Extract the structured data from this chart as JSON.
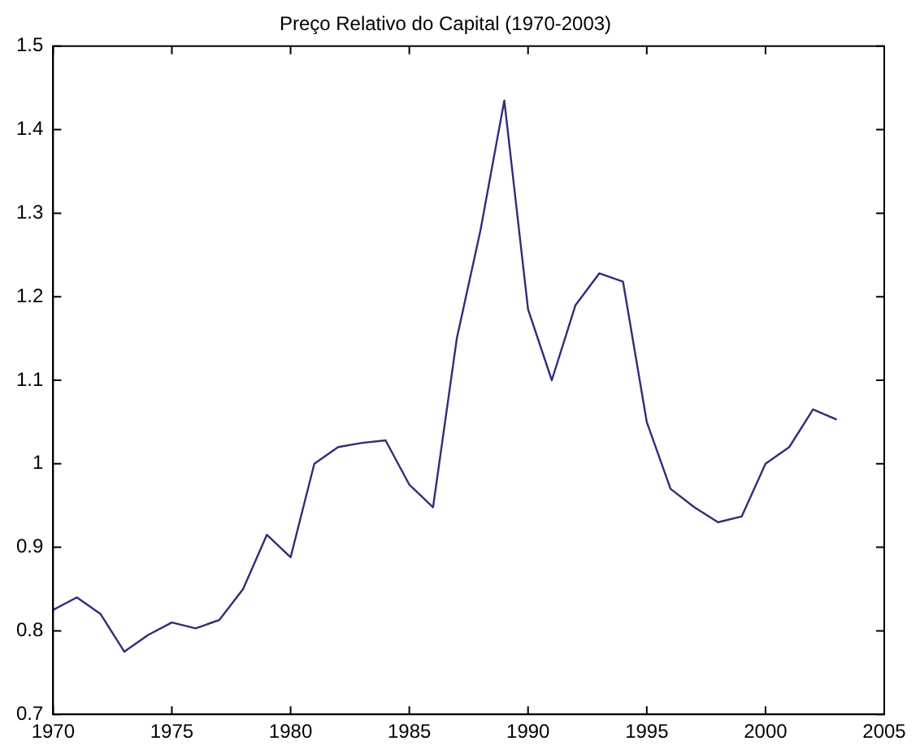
{
  "chart_data": {
    "type": "line",
    "title": "Preço Relativo do Capital (1970-2003)",
    "x": [
      1970,
      1971,
      1972,
      1973,
      1974,
      1975,
      1976,
      1977,
      1978,
      1979,
      1980,
      1981,
      1982,
      1983,
      1984,
      1985,
      1986,
      1987,
      1988,
      1989,
      1990,
      1991,
      1992,
      1993,
      1994,
      1995,
      1996,
      1997,
      1998,
      1999,
      2000,
      2001,
      2002,
      2003
    ],
    "series": [
      {
        "color": "#2e2e7a",
        "values": [
          0.825,
          0.84,
          0.82,
          0.775,
          0.795,
          0.81,
          0.803,
          0.813,
          0.85,
          0.915,
          0.888,
          1.0,
          1.02,
          1.025,
          1.028,
          0.975,
          0.948,
          1.15,
          1.28,
          1.435,
          1.185,
          1.1,
          1.19,
          1.228,
          1.218,
          1.05,
          0.97,
          0.948,
          0.93,
          0.937,
          1.0,
          1.02,
          1.065,
          1.053
        ]
      }
    ],
    "xlim": [
      1970,
      2005
    ],
    "xticks": [
      1970,
      1975,
      1980,
      1985,
      1990,
      1995,
      2000,
      2005
    ],
    "ylim": [
      0.7,
      1.5
    ],
    "yticks": [
      0.7,
      0.8,
      0.9,
      1,
      1.1,
      1.2,
      1.3,
      1.4,
      1.5
    ],
    "grid": false,
    "legend": false,
    "marker": "none",
    "line_style": "solid"
  }
}
